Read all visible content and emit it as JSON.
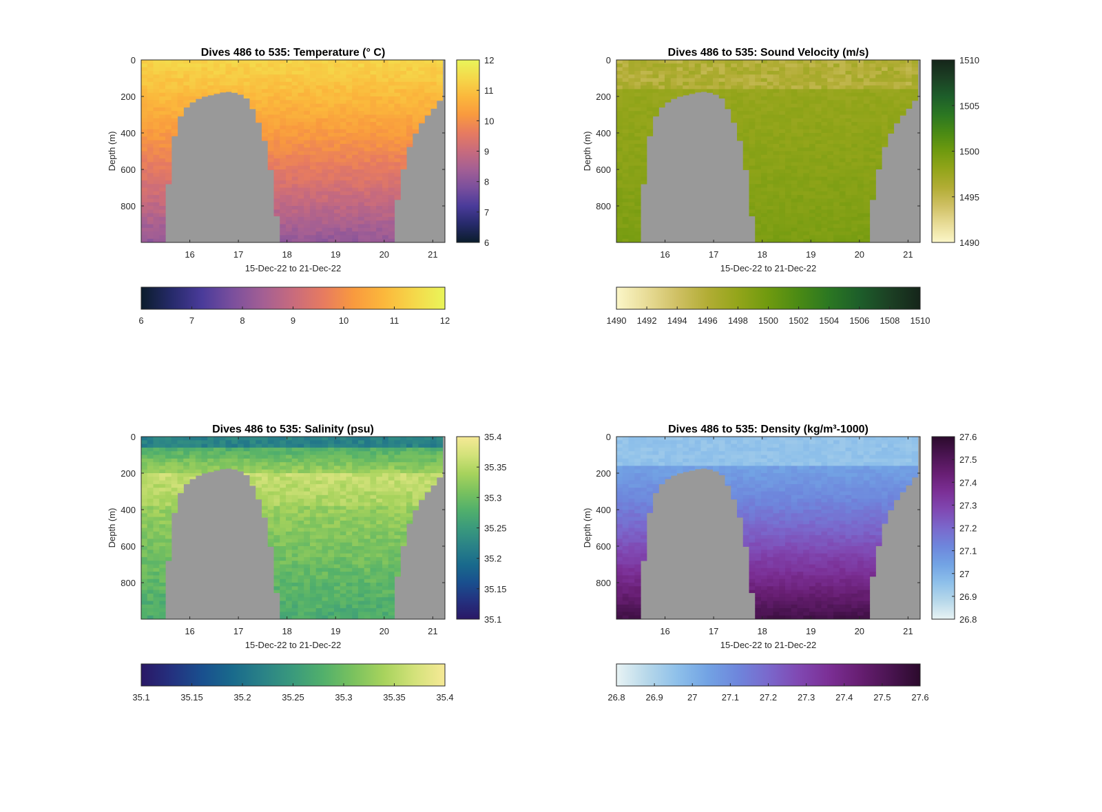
{
  "chart_data": [
    {
      "type": "heatmap",
      "title": "Dives 486 to 535: Temperature (° C)",
      "title_superscript": "o",
      "xlabel": "15-Dec-22 to 21-Dec-22",
      "ylabel": "Depth (m)",
      "x_ticks": [
        "16",
        "17",
        "18",
        "19",
        "20",
        "21"
      ],
      "y_ticks": [
        "0",
        "200",
        "400",
        "600",
        "800"
      ],
      "xlim": [
        "15-Dec-22",
        "21-Dec-22"
      ],
      "ylim": [
        1000,
        0
      ],
      "colorbar_range": [
        6,
        12
      ],
      "colorbar_ticks_vertical": [
        "12",
        "11",
        "10",
        "9",
        "8",
        "7",
        "6"
      ],
      "colorbar_ticks_horizontal": [
        "6",
        "7",
        "8",
        "9",
        "10",
        "11",
        "12"
      ],
      "colormap": [
        "#0b1d2c",
        "#262a6a",
        "#4a3b9a",
        "#7a4f9d",
        "#a35f94",
        "#c86b7d",
        "#e77b60",
        "#f99a3e",
        "#fbb83c",
        "#f5d84a",
        "#e9f55a"
      ],
      "surface_value": 11.2,
      "deep_value": 8.0
    },
    {
      "type": "heatmap",
      "title": "Dives 486 to 535: Sound Velocity (m/s)",
      "xlabel": "15-Dec-22 to 21-Dec-22",
      "ylabel": "Depth (m)",
      "x_ticks": [
        "16",
        "17",
        "18",
        "19",
        "20",
        "21"
      ],
      "y_ticks": [
        "0",
        "200",
        "400",
        "600",
        "800"
      ],
      "xlim": [
        "15-Dec-22",
        "21-Dec-22"
      ],
      "ylim": [
        1000,
        0
      ],
      "colorbar_range": [
        1490,
        1510
      ],
      "colorbar_ticks_vertical": [
        "1510",
        "1505",
        "1500",
        "1495",
        "1490"
      ],
      "colorbar_ticks_horizontal": [
        "1490",
        "1492",
        "1494",
        "1496",
        "1498",
        "1500",
        "1502",
        "1504",
        "1506",
        "1508",
        "1510"
      ],
      "colormap": [
        "#fbf6c8",
        "#e8dc97",
        "#cfc064",
        "#b2ad35",
        "#93a51a",
        "#6f9a0f",
        "#4a8a14",
        "#2b7722",
        "#1d5e2a",
        "#1c4024",
        "#15251a"
      ],
      "surface_value": 1496,
      "deep_value": 1499
    },
    {
      "type": "heatmap",
      "title": "Dives 486 to 535: Salinity (psu)",
      "xlabel": "15-Dec-22 to 21-Dec-22",
      "ylabel": "Depth (m)",
      "x_ticks": [
        "16",
        "17",
        "18",
        "19",
        "20",
        "21"
      ],
      "y_ticks": [
        "0",
        "200",
        "400",
        "600",
        "800"
      ],
      "xlim": [
        "15-Dec-22",
        "21-Dec-22"
      ],
      "ylim": [
        1000,
        0
      ],
      "colorbar_range": [
        35.1,
        35.4
      ],
      "colorbar_ticks_vertical": [
        "35.4",
        "35.35",
        "35.3",
        "35.25",
        "35.2",
        "35.15",
        "35.1"
      ],
      "colorbar_ticks_horizontal": [
        "35.1",
        "35.15",
        "35.2",
        "35.25",
        "35.3",
        "35.35",
        "35.4"
      ],
      "colormap": [
        "#2a1866",
        "#24317f",
        "#194f8e",
        "#196a8c",
        "#2a8287",
        "#3a9a7c",
        "#52b06b",
        "#7bc25e",
        "#a8d35d",
        "#d3e27a",
        "#f6e996"
      ],
      "surface_value": 35.27,
      "deep_value": 35.29
    },
    {
      "type": "heatmap",
      "title": "Dives 486 to 535: Density (kg/m³-1000)",
      "title_superscript": "3",
      "xlabel": "15-Dec-22 to 21-Dec-22",
      "ylabel": "Depth (m)",
      "x_ticks": [
        "16",
        "17",
        "18",
        "19",
        "20",
        "21"
      ],
      "y_ticks": [
        "0",
        "200",
        "400",
        "600",
        "800"
      ],
      "xlim": [
        "15-Dec-22",
        "21-Dec-22"
      ],
      "ylim": [
        1000,
        0
      ],
      "colorbar_range": [
        26.8,
        27.6
      ],
      "colorbar_ticks_vertical": [
        "27.6",
        "27.5",
        "27.4",
        "27.3",
        "27.2",
        "27.1",
        "27",
        "26.9",
        "26.8"
      ],
      "colorbar_ticks_horizontal": [
        "26.8",
        "26.9",
        "27",
        "27.1",
        "27.2",
        "27.3",
        "27.4",
        "27.5",
        "27.6"
      ],
      "colormap": [
        "#e8f3f4",
        "#b7d8ea",
        "#8ec0ea",
        "#72a3e4",
        "#6e86dc",
        "#7a68cc",
        "#8048b2",
        "#7b2f95",
        "#671e72",
        "#4a1451",
        "#2b0a2c"
      ],
      "surface_value": 27.0,
      "deep_value": 27.3
    }
  ],
  "colors": {
    "seafloor": "#999999",
    "frame": "#262626"
  }
}
